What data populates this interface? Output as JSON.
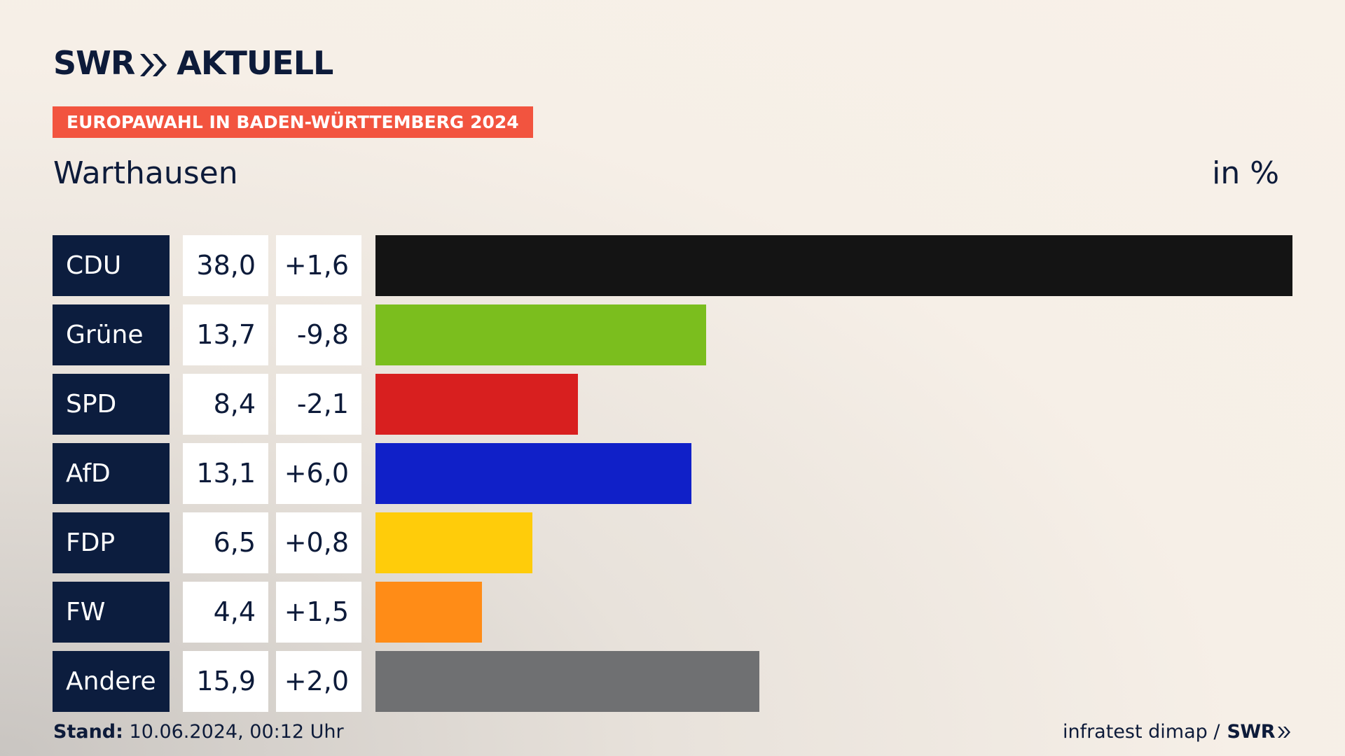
{
  "brand": {
    "left_text": "SWR",
    "right_text": "AKTUELL",
    "chevron_icon": "double-chevron-right-icon"
  },
  "tag": "EUROPAWAHL IN BADEN-WÜRTTEMBERG 2024",
  "region": "Warthausen",
  "unit": "in %",
  "colors": {
    "navy": "#0c1d3e",
    "tag": "#f2543f"
  },
  "chart_data": {
    "type": "bar",
    "orientation": "horizontal",
    "categories": [
      "CDU",
      "Grüne",
      "SPD",
      "AfD",
      "FDP",
      "FW",
      "Andere"
    ],
    "values": [
      38.0,
      13.7,
      8.4,
      13.1,
      6.5,
      4.4,
      15.9
    ],
    "value_labels": [
      "38,0",
      "13,7",
      "8,4",
      "13,1",
      "6,5",
      "4,4",
      "15,9"
    ],
    "diff_labels": [
      "+1,6",
      "-9,8",
      "-2,1",
      "+6,0",
      "+0,8",
      "+1,5",
      "+2,0"
    ],
    "colors": [
      "#141414",
      "#7bbe1e",
      "#d81f1f",
      "#1020c8",
      "#ffcc0a",
      "#ff8c17",
      "#6f7072"
    ],
    "ylim": [
      0,
      38.0
    ]
  },
  "footer": {
    "stand_label": "Stand:",
    "stand_value": "10.06.2024, 00:12 Uhr",
    "source": "infratest dimap /",
    "source_brand": "SWR"
  }
}
